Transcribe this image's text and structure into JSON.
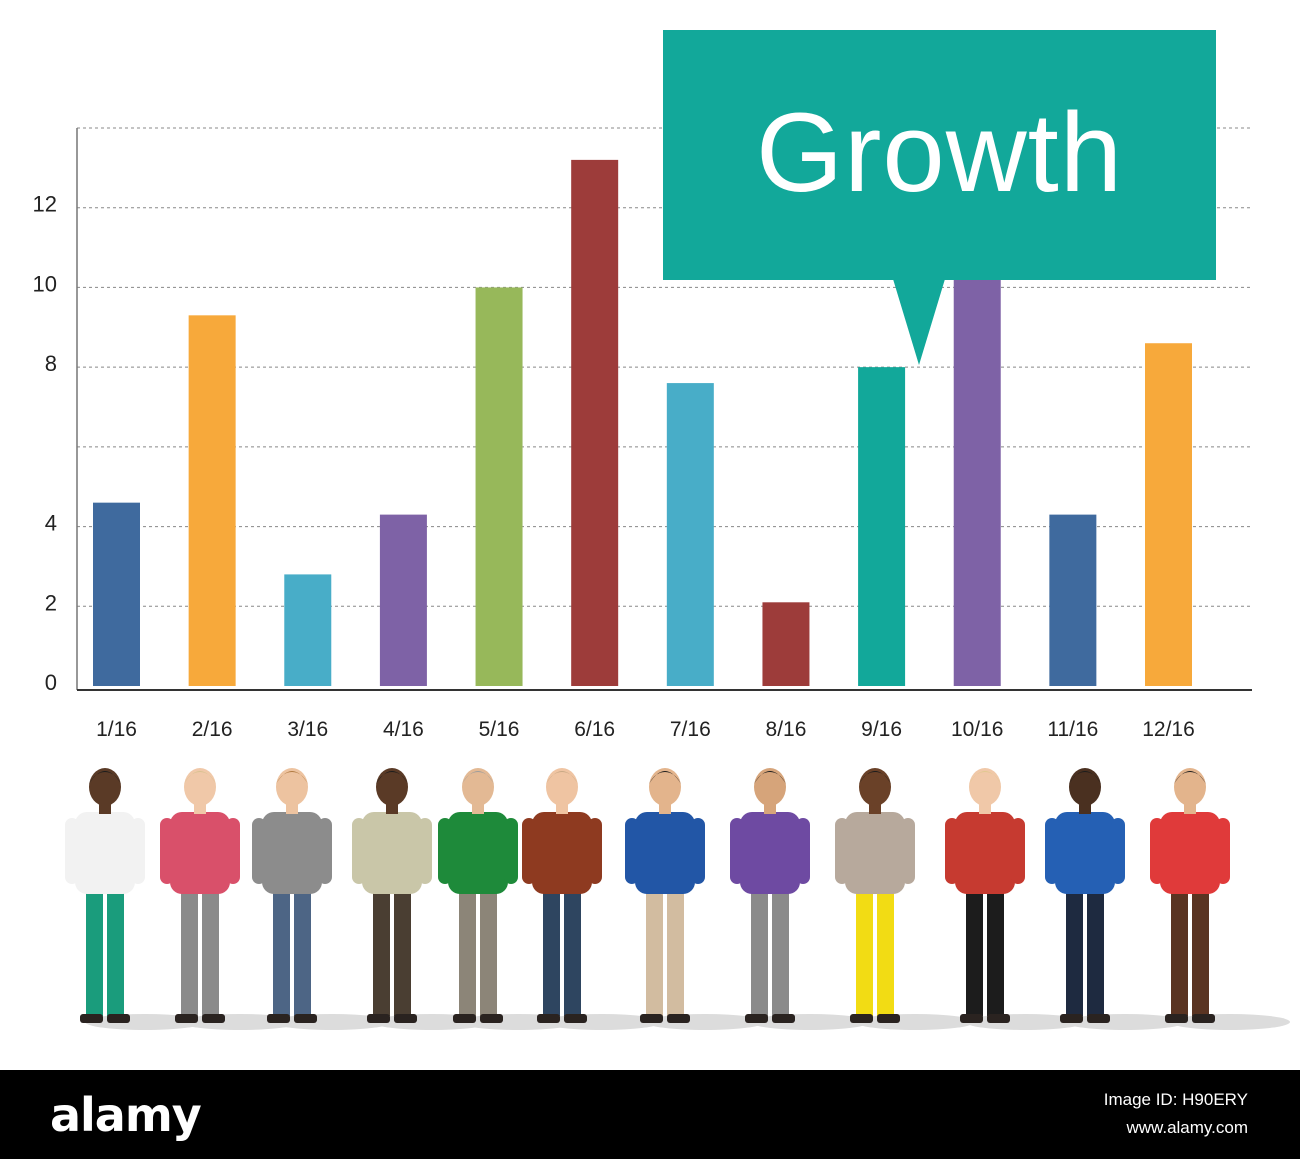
{
  "chart_data": {
    "type": "bar",
    "categories": [
      "1/16",
      "2/16",
      "3/16",
      "4/16",
      "5/16",
      "6/16",
      "7/16",
      "8/16",
      "9/16",
      "10/16",
      "11/16",
      "12/16"
    ],
    "values": [
      4.6,
      9.3,
      2.8,
      4.3,
      10.0,
      13.2,
      7.6,
      2.1,
      8.0,
      10.5,
      4.3,
      8.6
    ],
    "bar_colors": [
      "#3f6a9e",
      "#f7a93b",
      "#48adc8",
      "#7e62a6",
      "#97b85a",
      "#9d3c3a",
      "#48adc8",
      "#9d3c3a",
      "#12a89a",
      "#7e62a6",
      "#3f6a9e",
      "#f7a93b"
    ],
    "yticks": [
      {
        "value": 0,
        "label": "0"
      },
      {
        "value": 2,
        "label": "2"
      },
      {
        "value": 4,
        "label": "4"
      },
      {
        "value": 8,
        "label": "8"
      },
      {
        "value": 10,
        "label": "10"
      },
      {
        "value": 12,
        "label": "12"
      }
    ],
    "ylim": [
      0,
      14
    ],
    "grid": true,
    "gridlines": [
      2,
      4,
      6,
      8,
      10,
      12,
      14
    ],
    "title": "",
    "xlabel": "",
    "ylabel": ""
  },
  "callout": {
    "text": "Growth",
    "color": "#12a89a"
  },
  "people": [
    {
      "shirt": "#f2f2f2",
      "pants": "#1a9c7c",
      "skin": "#5a3a26",
      "hair": "#1c1c1c"
    },
    {
      "shirt": "#d9506a",
      "pants": "#8a8a8a",
      "skin": "#f0c8a8",
      "hair": "#d8c290"
    },
    {
      "shirt": "#8c8c8c",
      "pants": "#4d6585",
      "skin": "#edc3a0",
      "hair": "#b07a40"
    },
    {
      "shirt": "#c9c6a8",
      "pants": "#4a3e32",
      "skin": "#5a3a26",
      "hair": "#1c1c1c"
    },
    {
      "shirt": "#1e8a3a",
      "pants": "#8c8578",
      "skin": "#e3b994",
      "hair": "#9c9c9c"
    },
    {
      "shirt": "#8e3a20",
      "pants": "#2e4560",
      "skin": "#efc4a2",
      "hair": "#c8a884"
    },
    {
      "shirt": "#2256a6",
      "pants": "#d2bca0",
      "skin": "#e3b48c",
      "hair": "#1c1c1c"
    },
    {
      "shirt": "#6e4aa2",
      "pants": "#8a8a8a",
      "skin": "#d6a47a",
      "hair": "#1c1c1c"
    },
    {
      "shirt": "#b7a99c",
      "pants": "#f2dc14",
      "skin": "#6a4128",
      "hair": "#1c1c1c"
    },
    {
      "shirt": "#c63a30",
      "pants": "#1c1c1c",
      "skin": "#f0c8a8",
      "hair": "#e0c890"
    },
    {
      "shirt": "#2560b4",
      "pants": "#1e2a40",
      "skin": "#4a3020",
      "hair": "#1c1c1c"
    },
    {
      "shirt": "#e03a3a",
      "pants": "#5a3422",
      "skin": "#e3b48c",
      "hair": "#1c1c1c"
    }
  ],
  "watermark": {
    "brand": "alamy",
    "image_id": "H90ERY",
    "url": "www.alamy.com"
  }
}
